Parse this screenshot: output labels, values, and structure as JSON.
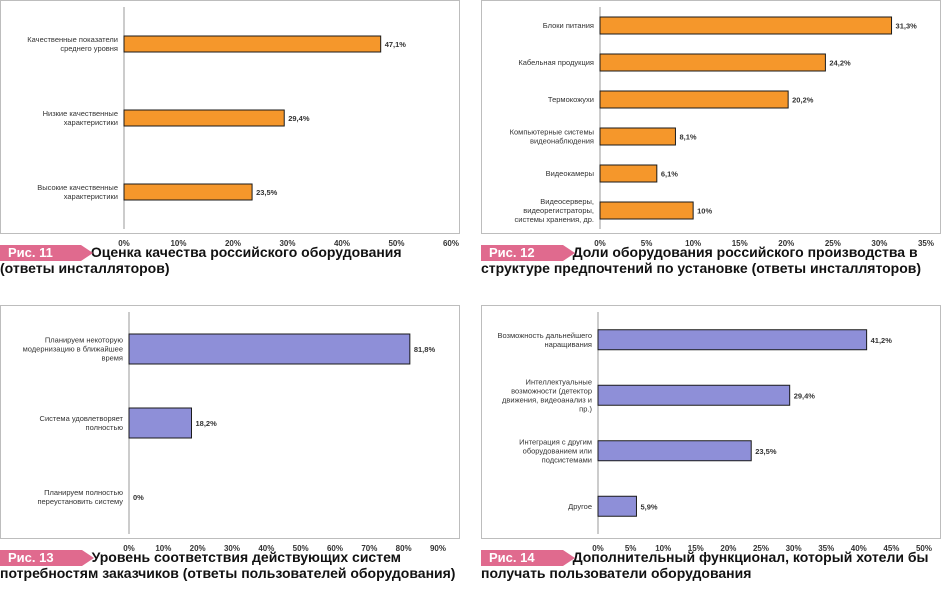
{
  "chart_data": [
    {
      "type": "bar",
      "orientation": "horizontal",
      "figure_label": "Рис. 11",
      "caption": "Оценка качества российского оборудования (ответы инсталляторов)",
      "categories": [
        "Качественные показатели среднего уровня",
        "Низкие качественные характеристики",
        "Высокие качественные характеристики"
      ],
      "values": [
        47.1,
        29.4,
        23.5
      ],
      "data_labels": [
        "47,1%",
        "29,4%",
        "23,5%"
      ],
      "xlim": [
        0,
        60
      ],
      "ticks": [
        "0%",
        "10%",
        "20%",
        "30%",
        "40%",
        "50%",
        "60%"
      ],
      "bar_color": "#f5972b",
      "grid": false
    },
    {
      "type": "bar",
      "orientation": "horizontal",
      "figure_label": "Рис. 12",
      "caption": "Доли оборудования российского производства в структуре предпочтений по установке (ответы инсталляторов)",
      "categories": [
        "Блоки питания",
        "Кабельная продукция",
        "Термокожухи",
        "Компьютерные системы видеонаблюдения",
        "Видеокамеры",
        "Видеосерверы, видеорегистраторы, системы хранения, др."
      ],
      "values": [
        31.3,
        24.2,
        20.2,
        8.1,
        6.1,
        10
      ],
      "data_labels": [
        "31,3%",
        "24,2%",
        "20,2%",
        "8,1%",
        "6,1%",
        "10%"
      ],
      "xlim": [
        0,
        35
      ],
      "ticks": [
        "0%",
        "5%",
        "10%",
        "15%",
        "20%",
        "25%",
        "30%",
        "35%"
      ],
      "bar_color": "#f5972b",
      "grid": false
    },
    {
      "type": "bar",
      "orientation": "horizontal",
      "figure_label": "Рис. 13",
      "caption": "Уровень соответствия действующих систем потребностям заказчиков (ответы пользователей оборудования)",
      "categories": [
        "Планируем некоторую модернизацию в ближайшее время",
        "Система удовлетворяет полностью",
        "Планируем полностью переустановить систему"
      ],
      "values": [
        81.8,
        18.2,
        0
      ],
      "data_labels": [
        "81,8%",
        "18,2%",
        "0%"
      ],
      "xlim": [
        0,
        90
      ],
      "ticks": [
        "0%",
        "10%",
        "20%",
        "30%",
        "40%",
        "50%",
        "60%",
        "70%",
        "80%",
        "90%"
      ],
      "bar_color": "#8e8fd8",
      "grid": false
    },
    {
      "type": "bar",
      "orientation": "horizontal",
      "figure_label": "Рис. 14",
      "caption": "Дополнительный функционал, который хотели бы получать пользователи оборудования",
      "categories": [
        "Возможность дальнейшего наращивания",
        "Интеллектуальные возможности (детектор движения, видеоанализ и пр.)",
        "Интеграция с другим оборудованием или подсистемами",
        "Другое"
      ],
      "values": [
        41.2,
        29.4,
        23.5,
        5.9
      ],
      "data_labels": [
        "41,2%",
        "29,4%",
        "23,5%",
        "5,9%"
      ],
      "xlim": [
        0,
        50
      ],
      "ticks": [
        "0%",
        "5%",
        "10%",
        "15%",
        "20%",
        "25%",
        "30%",
        "35%",
        "40%",
        "45%",
        "50%"
      ],
      "bar_color": "#8e8fd8",
      "grid": false
    }
  ]
}
